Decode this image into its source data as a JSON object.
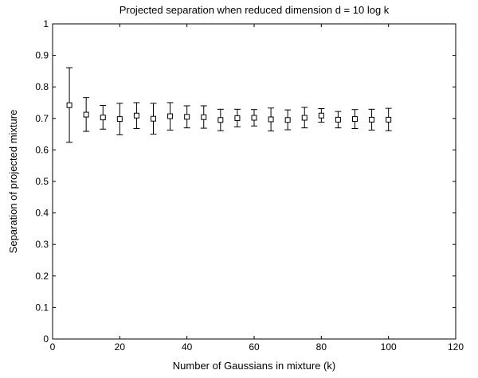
{
  "chart_data": {
    "type": "scatter",
    "title": "Projected separation when reduced dimension d = 10 log k",
    "xlabel": "Number of Gaussians in mixture (k)",
    "ylabel": "Separation of projected mixture",
    "xlim": [
      0,
      120
    ],
    "ylim": [
      0,
      1
    ],
    "xticks": [
      "0",
      "20",
      "40",
      "60",
      "80",
      "100",
      "120"
    ],
    "yticks": [
      "0",
      "0.1",
      "0.2",
      "0.3",
      "0.4",
      "0.5",
      "0.6",
      "0.7",
      "0.8",
      "0.9",
      "1"
    ],
    "grid": false,
    "marker": "square",
    "error_bars": true,
    "series": [
      {
        "x": [
          5,
          10,
          15,
          20,
          25,
          30,
          35,
          40,
          45,
          50,
          55,
          60,
          65,
          70,
          75,
          80,
          85,
          90,
          95,
          100
        ],
        "y": [
          0.742,
          0.712,
          0.703,
          0.698,
          0.709,
          0.699,
          0.707,
          0.705,
          0.704,
          0.695,
          0.701,
          0.702,
          0.697,
          0.695,
          0.702,
          0.709,
          0.696,
          0.698,
          0.696,
          0.696
        ],
        "y_low": [
          0.624,
          0.659,
          0.666,
          0.648,
          0.668,
          0.65,
          0.663,
          0.67,
          0.669,
          0.661,
          0.673,
          0.676,
          0.66,
          0.664,
          0.67,
          0.688,
          0.67,
          0.668,
          0.663,
          0.661
        ],
        "y_high": [
          0.861,
          0.766,
          0.741,
          0.748,
          0.75,
          0.748,
          0.75,
          0.74,
          0.74,
          0.729,
          0.729,
          0.728,
          0.733,
          0.727,
          0.735,
          0.731,
          0.722,
          0.728,
          0.729,
          0.732
        ]
      }
    ]
  }
}
